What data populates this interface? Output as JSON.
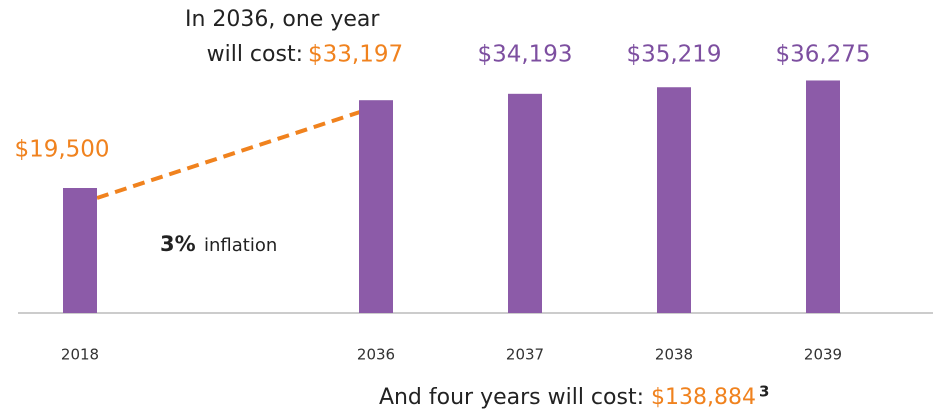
{
  "chart_data": {
    "type": "bar",
    "categories": [
      "2018",
      "2036",
      "2037",
      "2038",
      "2039"
    ],
    "values": [
      19500,
      33197,
      34193,
      35219,
      36275
    ],
    "value_labels": [
      "$19,500",
      "$33,197",
      "$34,193",
      "$35,219",
      "$36,275"
    ],
    "color": "#8c5ba8",
    "value_label_colors": [
      "#f0821e",
      "#f0821e",
      "#7d4fa0",
      "#7d4fa0",
      "#7d4fa0"
    ],
    "annotations": {
      "top": [
        "In 2036, one year",
        "will cost:"
      ],
      "inflation": [
        "3%",
        "inflation"
      ],
      "total": {
        "text": "And four years will cost:",
        "value": 138884,
        "label": "$138,884",
        "note": "3"
      }
    },
    "trend_color": "#f0821e"
  }
}
